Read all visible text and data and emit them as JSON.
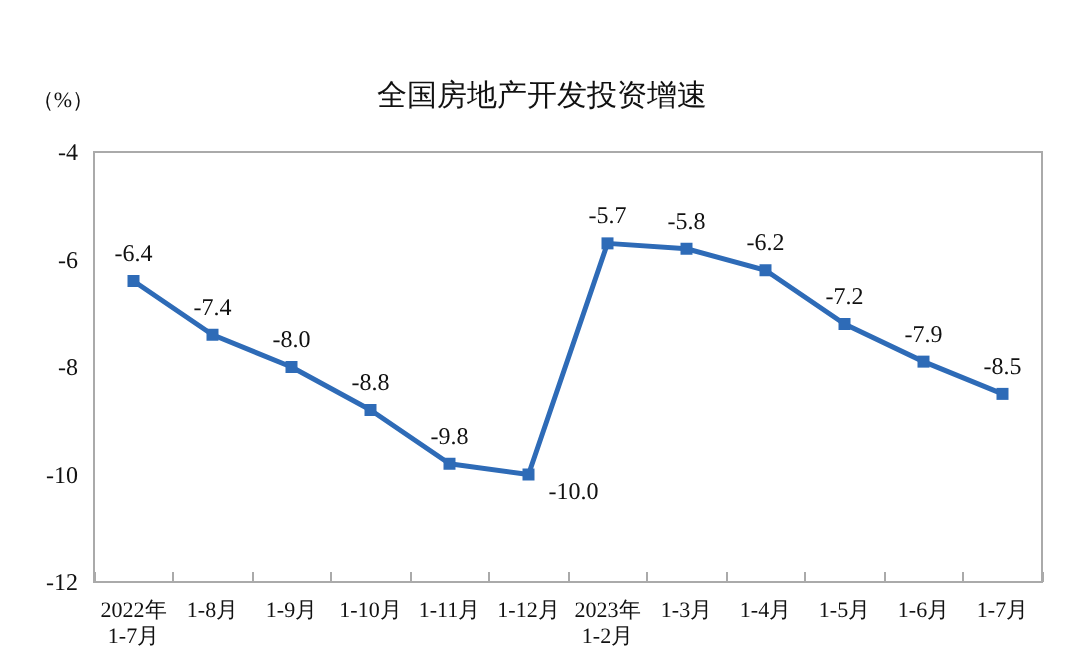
{
  "chart_data": {
    "type": "line",
    "title": "全国房地产开发投资增速",
    "ylabel": "（%）",
    "categories": [
      "2022年\n1-7月",
      "1-8月",
      "1-9月",
      "1-10月",
      "1-11月",
      "1-12月",
      "2023年\n1-2月",
      "1-3月",
      "1-4月",
      "1-5月",
      "1-6月",
      "1-7月"
    ],
    "series": [
      {
        "color": "#2e6bb7",
        "values": [
          -6.4,
          -7.4,
          -8.0,
          -8.8,
          -9.8,
          -10.0,
          -5.7,
          -5.8,
          -6.2,
          -7.2,
          -7.9,
          -8.5
        ],
        "value_labels": [
          "-6.4",
          "-7.4",
          "-8.0",
          "-8.8",
          "-9.8",
          "-10.0",
          "-5.7",
          "-5.8",
          "-6.2",
          "-7.2",
          "-7.9",
          "-8.5"
        ]
      }
    ],
    "ylim": [
      -12,
      -4
    ],
    "yticks": [
      -12,
      -10,
      -8,
      -6,
      -4
    ],
    "grid": false,
    "marker": "square",
    "line_style": "solid"
  }
}
